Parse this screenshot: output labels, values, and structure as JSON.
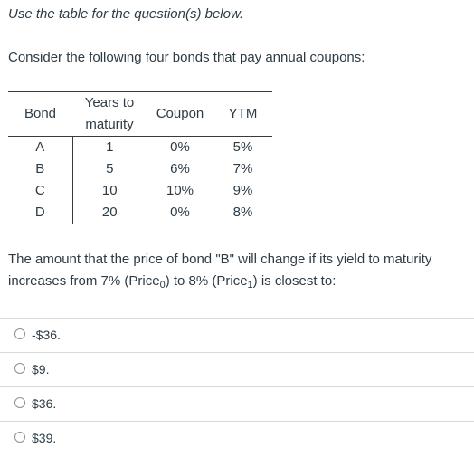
{
  "intro": "Use the table for the question(s) below.",
  "prompt": "Consider the following four bonds that pay annual coupons:",
  "table": {
    "headers": {
      "bond": "Bond",
      "years_line1": "Years to",
      "years_line2": "maturity",
      "coupon": "Coupon",
      "ytm": "YTM"
    },
    "rows": [
      {
        "bond": "A",
        "years": "1",
        "coupon": "0%",
        "ytm": "5%"
      },
      {
        "bond": "B",
        "years": "5",
        "coupon": "6%",
        "ytm": "7%"
      },
      {
        "bond": "C",
        "years": "10",
        "coupon": "10%",
        "ytm": "9%"
      },
      {
        "bond": "D",
        "years": "20",
        "coupon": "0%",
        "ytm": "8%"
      }
    ]
  },
  "question": {
    "part1": "The amount that the price of bond \"B\" will change if its yield to maturity increases from 7% (Price",
    "sub1": "0",
    "part2": ") to 8% (Price",
    "sub2": "1",
    "part3": ") is closest to:"
  },
  "answers": [
    {
      "label": "-$36."
    },
    {
      "label": "$9."
    },
    {
      "label": "$36."
    },
    {
      "label": "$39."
    }
  ]
}
